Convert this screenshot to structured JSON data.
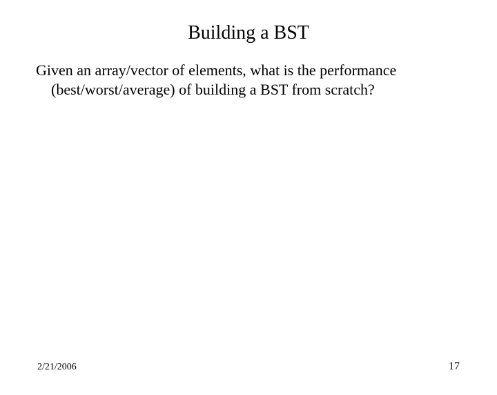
{
  "slide": {
    "title": "Building a BST",
    "body_line1": "Given an array/vector of elements, what is the performance",
    "body_line2": "(best/worst/average) of building a BST from scratch?"
  },
  "footer": {
    "date": "2/21/2006",
    "page_number": "17"
  },
  "style": {
    "background_color": "#ffffff",
    "text_color": "#000000",
    "title_fontsize": 28,
    "body_fontsize": 22,
    "footer_fontsize": 14,
    "font_family": "Times New Roman"
  }
}
